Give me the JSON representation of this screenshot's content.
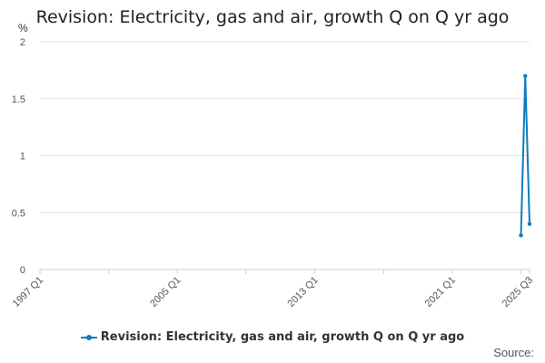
{
  "chart_data": {
    "type": "line",
    "title": "Revision: Electricity, gas and air, growth Q on Q yr ago",
    "ylabel": "%",
    "xlabel": "",
    "ylim": [
      0,
      2
    ],
    "y_ticks": [
      "0",
      "0.5",
      "1",
      "1.5",
      "2"
    ],
    "x_ticks": [
      "1997 Q1",
      "2005 Q1",
      "2013 Q1",
      "2021 Q1",
      "2025 Q3"
    ],
    "grid": true,
    "legend_position": "bottom",
    "series": [
      {
        "name": "Revision: Electricity, gas and air, growth Q on Q yr ago",
        "color": "#0e7bbf",
        "points": [
          {
            "x": "2025 Q1",
            "y": 0.3
          },
          {
            "x": "2025 Q2",
            "y": 1.7
          },
          {
            "x": "2025 Q3",
            "y": 0.4
          }
        ]
      }
    ]
  },
  "footer": {
    "source_label": "Source:"
  }
}
